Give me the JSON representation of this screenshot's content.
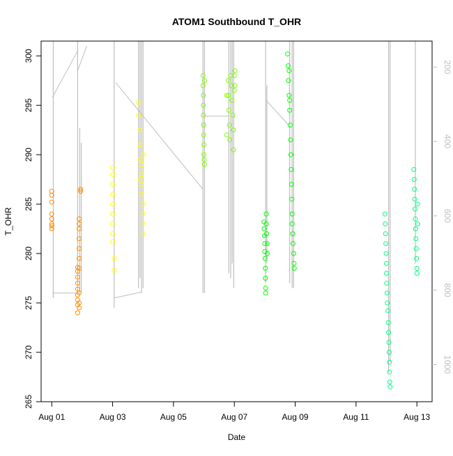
{
  "chart_data": {
    "type": "scatter",
    "title": "ATOM1 Southbound T_OHR",
    "xlabel": "Date",
    "ylabel": "T_OHR",
    "x_ticks": [
      {
        "label": "Aug 01",
        "day": 1
      },
      {
        "label": "Aug 03",
        "day": 3
      },
      {
        "label": "Aug 05",
        "day": 5
      },
      {
        "label": "Aug 07",
        "day": 7
      },
      {
        "label": "Aug 09",
        "day": 9
      },
      {
        "label": "Aug 11",
        "day": 11
      },
      {
        "label": "Aug 13",
        "day": 13
      }
    ],
    "xlim": [
      0.65,
      13.5
    ],
    "ylim": [
      265,
      301.5
    ],
    "y_ticks": [
      265,
      270,
      275,
      280,
      285,
      290,
      295,
      300
    ],
    "y2_ticks": [
      200,
      400,
      600,
      800,
      1000
    ],
    "y2lim": [
      1100,
      130
    ],
    "y2_color": "#bebebe",
    "grid": false,
    "series": [
      {
        "color": "#ff8c00",
        "points": [
          [
            1.0,
            286.3
          ],
          [
            1.0,
            285.9
          ],
          [
            1.0,
            285.2
          ],
          [
            1.0,
            284.0
          ],
          [
            1.0,
            283.5
          ],
          [
            1.0,
            283.0
          ],
          [
            1.0,
            282.8
          ],
          [
            1.0,
            282.5
          ],
          [
            1.85,
            278.6
          ],
          [
            1.85,
            278.2
          ],
          [
            1.85,
            277.6
          ],
          [
            1.85,
            277.0
          ],
          [
            1.85,
            276.4
          ],
          [
            1.85,
            275.8
          ],
          [
            1.85,
            275.3
          ],
          [
            1.85,
            274.8
          ],
          [
            1.85,
            274.0
          ],
          [
            1.9,
            283.5
          ],
          [
            1.9,
            283.0
          ],
          [
            1.9,
            282.5
          ],
          [
            1.9,
            281.5
          ],
          [
            1.9,
            280.5
          ],
          [
            1.9,
            279.5
          ],
          [
            1.9,
            278.5
          ],
          [
            1.9,
            276.0
          ],
          [
            1.9,
            275.0
          ],
          [
            1.9,
            274.5
          ],
          [
            1.95,
            286.5
          ],
          [
            1.95,
            286.3
          ]
        ]
      },
      {
        "color": "#ffff00",
        "points": [
          [
            3.0,
            288.7
          ],
          [
            3.0,
            288.0
          ],
          [
            3.0,
            287.0
          ],
          [
            3.0,
            286.0
          ],
          [
            3.0,
            285.0
          ],
          [
            3.0,
            284.0
          ],
          [
            3.0,
            283.0
          ],
          [
            3.0,
            282.0
          ],
          [
            3.0,
            281.2
          ],
          [
            3.05,
            279.5
          ],
          [
            3.05,
            278.3
          ],
          [
            3.85,
            295.3
          ],
          [
            3.85,
            294.0
          ],
          [
            3.9,
            292.5
          ],
          [
            3.9,
            291.0
          ],
          [
            3.9,
            289.5
          ],
          [
            3.95,
            288.0
          ],
          [
            3.95,
            287.0
          ],
          [
            3.95,
            286.0
          ],
          [
            4.0,
            285.0
          ],
          [
            4.0,
            284.0
          ],
          [
            4.0,
            283.0
          ],
          [
            4.0,
            282.0
          ],
          [
            3.9,
            287.5
          ],
          [
            3.95,
            289.0
          ],
          [
            4.0,
            290.0
          ]
        ]
      },
      {
        "color": "#7fff00",
        "points": [
          [
            5.97,
            298.0
          ],
          [
            5.97,
            297.0
          ],
          [
            5.98,
            296.0
          ],
          [
            5.98,
            295.0
          ],
          [
            5.98,
            294.0
          ],
          [
            5.99,
            293.0
          ],
          [
            5.99,
            292.0
          ],
          [
            6.0,
            291.0
          ],
          [
            6.0,
            290.0
          ],
          [
            6.01,
            289.5
          ],
          [
            6.02,
            289.0
          ],
          [
            6.02,
            297.5
          ],
          [
            6.8,
            297.5
          ],
          [
            6.8,
            296.0
          ],
          [
            6.82,
            294.5
          ],
          [
            6.84,
            293.0
          ],
          [
            6.85,
            291.5
          ],
          [
            6.9,
            297.0
          ],
          [
            6.92,
            295.5
          ],
          [
            6.95,
            294.0
          ],
          [
            6.97,
            292.5
          ],
          [
            6.97,
            290.5
          ],
          [
            7.0,
            298.0
          ],
          [
            7.0,
            296.5
          ],
          [
            7.02,
            298.5
          ],
          [
            7.02,
            297.0
          ],
          [
            6.88,
            298.0
          ],
          [
            6.75,
            296.0
          ],
          [
            6.75,
            292.0
          ]
        ]
      },
      {
        "color": "#00ff00",
        "points": [
          [
            7.97,
            283.2
          ],
          [
            7.98,
            282.5
          ],
          [
            7.99,
            281.8
          ],
          [
            8.0,
            281.0
          ],
          [
            8.0,
            280.2
          ],
          [
            8.01,
            279.5
          ],
          [
            8.02,
            278.5
          ],
          [
            8.02,
            277.5
          ],
          [
            8.03,
            276.5
          ],
          [
            8.03,
            276.0
          ],
          [
            8.05,
            284.0
          ],
          [
            8.05,
            283.0
          ],
          [
            8.06,
            282.0
          ],
          [
            8.08,
            281.0
          ],
          [
            8.08,
            280.0
          ],
          [
            8.75,
            300.2
          ],
          [
            8.77,
            299.0
          ],
          [
            8.78,
            297.5
          ],
          [
            8.8,
            296.0
          ],
          [
            8.82,
            294.5
          ],
          [
            8.84,
            293.0
          ],
          [
            8.85,
            291.5
          ],
          [
            8.86,
            290.0
          ],
          [
            8.87,
            288.5
          ],
          [
            8.88,
            287.0
          ],
          [
            8.89,
            285.5
          ],
          [
            8.9,
            284.0
          ],
          [
            8.9,
            283.0
          ],
          [
            8.92,
            282.0
          ],
          [
            8.93,
            281.0
          ],
          [
            8.95,
            280.0
          ],
          [
            8.96,
            279.0
          ],
          [
            8.97,
            278.5
          ],
          [
            8.8,
            298.5
          ],
          [
            8.82,
            295.5
          ]
        ]
      },
      {
        "color": "#00ff7f",
        "points": [
          [
            11.95,
            284.0
          ],
          [
            11.96,
            283.0
          ],
          [
            11.97,
            282.0
          ],
          [
            11.98,
            281.0
          ],
          [
            11.99,
            280.0
          ],
          [
            12.0,
            279.0
          ],
          [
            12.0,
            278.0
          ],
          [
            12.01,
            277.0
          ],
          [
            12.02,
            276.0
          ],
          [
            12.03,
            275.0
          ],
          [
            12.05,
            274.2
          ],
          [
            12.06,
            273.0
          ],
          [
            12.07,
            272.0
          ],
          [
            12.08,
            271.0
          ],
          [
            12.09,
            270.0
          ],
          [
            12.1,
            269.0
          ],
          [
            12.1,
            268.0
          ],
          [
            12.11,
            267.0
          ],
          [
            12.12,
            266.5
          ],
          [
            12.9,
            288.5
          ],
          [
            12.91,
            287.5
          ],
          [
            12.92,
            286.5
          ],
          [
            12.93,
            285.5
          ],
          [
            12.94,
            284.5
          ],
          [
            12.95,
            283.5
          ],
          [
            12.96,
            282.5
          ],
          [
            12.97,
            281.5
          ],
          [
            12.98,
            280.5
          ],
          [
            12.99,
            279.5
          ],
          [
            13.0,
            278.5
          ],
          [
            13.0,
            278.0
          ],
          [
            13.02,
            285.0
          ],
          [
            13.03,
            283.0
          ]
        ]
      }
    ],
    "gray_lines": {
      "color": "#bebebe",
      "vertical_bars": [
        [
          1.05,
          275.5,
          301.5
        ],
        [
          1.85,
          276.0,
          301.5
        ],
        [
          1.92,
          276.0,
          292.7
        ],
        [
          1.97,
          276.0,
          291.2
        ],
        [
          3.05,
          274.5,
          301.5
        ],
        [
          3.85,
          276.5,
          301.5
        ],
        [
          3.9,
          277.5,
          301.5
        ],
        [
          3.95,
          276.0,
          301.5
        ],
        [
          4.0,
          276.5,
          301.5
        ],
        [
          5.97,
          276.0,
          301.5
        ],
        [
          6.02,
          276.0,
          301.5
        ],
        [
          6.82,
          278.0,
          301.5
        ],
        [
          6.88,
          277.5,
          301.5
        ],
        [
          6.93,
          279.0,
          301.5
        ],
        [
          6.98,
          276.5,
          301.5
        ],
        [
          8.03,
          277.0,
          301.5
        ],
        [
          8.07,
          279.0,
          297.0
        ],
        [
          8.82,
          277.0,
          301.5
        ],
        [
          8.9,
          276.5,
          301.5
        ],
        [
          8.95,
          276.5,
          301.5
        ],
        [
          12.07,
          268.0,
          301.5
        ],
        [
          12.12,
          269.0,
          301.5
        ],
        [
          12.95,
          279.0,
          301.5
        ]
      ],
      "segments": [
        [
          [
            1.02,
            276.0
          ],
          [
            1.85,
            276.0
          ]
        ],
        [
          [
            1.02,
            295.8
          ],
          [
            1.85,
            300.5
          ]
        ],
        [
          [
            1.85,
            298.5
          ],
          [
            2.15,
            301.0
          ]
        ],
        [
          [
            3.05,
            275.5
          ],
          [
            3.95,
            276.1
          ]
        ],
        [
          [
            3.1,
            297.3
          ],
          [
            5.97,
            286.5
          ]
        ],
        [
          [
            6.02,
            293.9
          ],
          [
            6.82,
            293.9
          ]
        ],
        [
          [
            8.05,
            295.5
          ],
          [
            8.78,
            293.0
          ]
        ]
      ]
    }
  }
}
